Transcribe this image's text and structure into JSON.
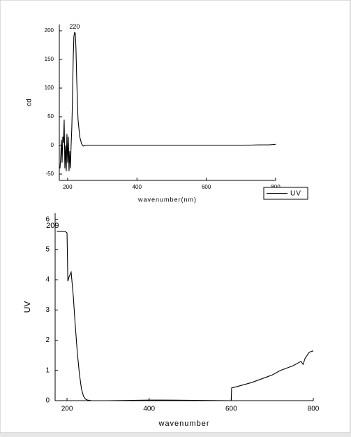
{
  "chart_data": [
    {
      "type": "line",
      "x_label": "wavenumber(nm)",
      "y_label": "cd",
      "annotation": "220",
      "x": [
        178,
        180,
        182,
        184,
        186,
        188,
        190,
        192,
        194,
        196,
        198,
        200,
        202,
        204,
        206,
        208,
        210,
        212,
        214,
        216,
        218,
        220,
        222,
        224,
        226,
        228,
        230,
        235,
        240,
        245,
        250,
        300,
        400,
        500,
        600,
        700,
        750,
        780,
        800
      ],
      "series": [
        {
          "name": "UV",
          "color": "#000000",
          "values": [
            -40,
            -20,
            10,
            -30,
            15,
            5,
            45,
            -40,
            0,
            -45,
            20,
            -30,
            15,
            -45,
            -10,
            -40,
            0,
            30,
            80,
            150,
            190,
            197,
            196,
            170,
            120,
            80,
            45,
            15,
            3,
            -1,
            0,
            0,
            0,
            0,
            0,
            0,
            1,
            1,
            2
          ]
        }
      ],
      "xlim": [
        176,
        800
      ],
      "ylim": [
        -61,
        211
      ],
      "xticks": [
        200,
        400,
        600,
        800
      ],
      "yticks": [
        -50,
        0,
        50,
        100,
        150,
        200
      ],
      "legend": "outside-bottom-right"
    },
    {
      "type": "line",
      "x_label": "wavenumber",
      "y_label": "UV",
      "annotation": "209",
      "x": [
        175,
        195,
        200,
        202,
        205,
        210,
        215,
        220,
        225,
        230,
        235,
        240,
        245,
        250,
        260,
        300,
        400,
        430,
        600,
        601,
        610,
        650,
        700,
        720,
        750,
        770,
        775,
        780,
        790,
        800
      ],
      "series": [
        {
          "color": "#000000",
          "values": [
            5.6,
            5.6,
            5.55,
            3.95,
            4.1,
            4.25,
            3.5,
            2.5,
            1.6,
            0.9,
            0.4,
            0.15,
            0.05,
            0.02,
            0,
            0,
            0.02,
            0.02,
            0,
            0.42,
            0.45,
            0.6,
            0.85,
            1.0,
            1.15,
            1.3,
            1.2,
            1.4,
            1.6,
            1.65
          ]
        }
      ],
      "xlim": [
        171,
        800
      ],
      "ylim": [
        0,
        6.2
      ],
      "xticks": [
        200,
        400,
        600,
        800
      ],
      "yticks": [
        0,
        1,
        2,
        3,
        4,
        5,
        6
      ]
    }
  ]
}
